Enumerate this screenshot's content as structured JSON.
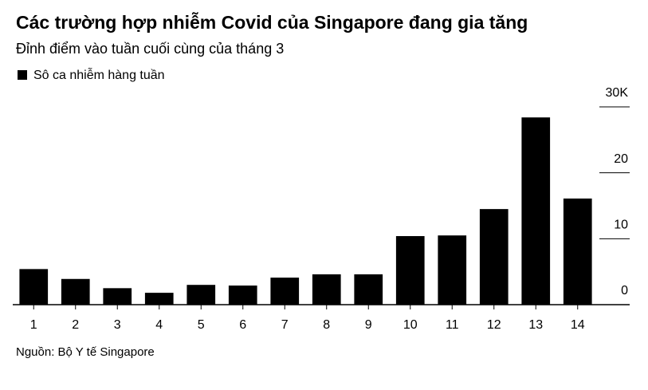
{
  "chart_data": {
    "type": "bar",
    "title": "Các trường hợp nhiễm Covid của Singapore đang gia tăng",
    "subtitle": "Đỉnh điểm vào tuần cuối cùng của tháng 3",
    "source": "Nguồn: Bộ Y tế Singapore",
    "categories": [
      "1",
      "2",
      "3",
      "4",
      "5",
      "6",
      "7",
      "8",
      "9",
      "10",
      "11",
      "12",
      "13",
      "14"
    ],
    "series": [
      {
        "name": "Sô ca nhiễm hàng tuần",
        "color": "#000000",
        "values": [
          5.4,
          3.9,
          2.5,
          1.8,
          3.0,
          2.9,
          4.1,
          4.6,
          4.6,
          10.4,
          10.5,
          14.5,
          28.4,
          16.1
        ]
      }
    ],
    "ylim": [
      0,
      30
    ],
    "yticks": [
      0,
      10,
      20,
      {
        "value": 30,
        "label": "30K"
      }
    ]
  }
}
